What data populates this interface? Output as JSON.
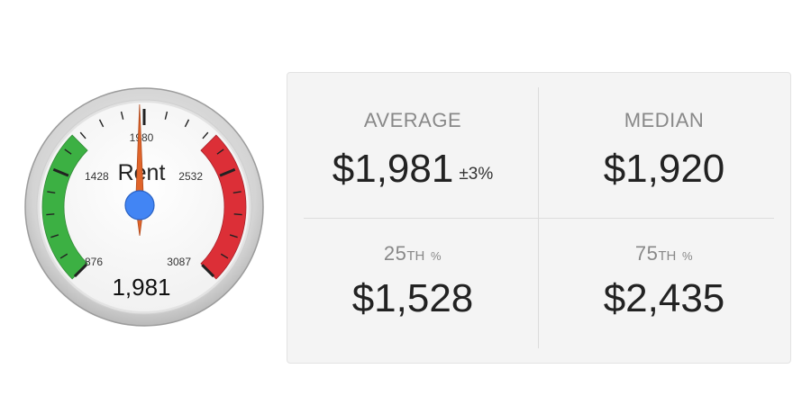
{
  "gauge": {
    "title": "Rent",
    "value": 1981,
    "value_text": "1,981",
    "min": 876,
    "max": 3087,
    "tick_labels": [
      "876",
      "1428",
      "1980",
      "2532",
      "3087"
    ],
    "colors": {
      "green": "#3cb043",
      "red": "#dc2f37",
      "needle": "#e0642a",
      "hub": "#4285f4",
      "bezel": "#d6d6d6"
    }
  },
  "stats": {
    "average": {
      "label": "AVERAGE",
      "value": "$1,981",
      "margin": "±3%"
    },
    "median": {
      "label": "MEDIAN",
      "value": "$1,920"
    },
    "p25": {
      "label_num": "25",
      "label_sup": "TH",
      "label_pct": "%",
      "value": "$1,528"
    },
    "p75": {
      "label_num": "75",
      "label_sup": "TH",
      "label_pct": "%",
      "value": "$2,435"
    }
  }
}
